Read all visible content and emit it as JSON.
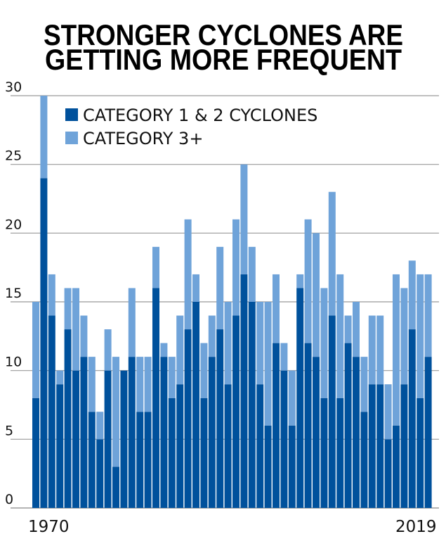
{
  "chart_data": {
    "type": "bar",
    "stacked": true,
    "title": "STRONGER CYCLONES ARE GETTING MORE FREQUENT",
    "title_lines": [
      "STRONGER CYCLONES ARE",
      "GETTING MORE FREQUENT"
    ],
    "xlabel": "",
    "ylabel": "",
    "ylim": [
      0,
      30
    ],
    "yticks": [
      0,
      5,
      10,
      15,
      20,
      25,
      30
    ],
    "x_start": 1970,
    "x_end": 2019,
    "x_tick_labels": [
      "1970",
      "2019"
    ],
    "grid": true,
    "legend_position": "top-left",
    "series": [
      {
        "name": "CATEGORY 1 & 2 CYCLONES",
        "color": "#00519c",
        "values": [
          8,
          24,
          14,
          9,
          13,
          10,
          11,
          7,
          5,
          10,
          3,
          10,
          11,
          7,
          7,
          16,
          11,
          8,
          9,
          13,
          15,
          8,
          11,
          13,
          9,
          14,
          17,
          15,
          9,
          6,
          12,
          10,
          6,
          16,
          12,
          11,
          8,
          14,
          8,
          12,
          11,
          7,
          9,
          9,
          5,
          6,
          9,
          13,
          8,
          11
        ]
      },
      {
        "name": "CATEGORY 3+",
        "color": "#6fa3d9",
        "values": [
          7,
          6,
          3,
          1,
          3,
          6,
          3,
          4,
          2,
          3,
          8,
          0,
          5,
          4,
          4,
          3,
          1,
          3,
          5,
          8,
          2,
          4,
          3,
          6,
          6,
          7,
          8,
          4,
          6,
          9,
          5,
          2,
          4,
          1,
          9,
          9,
          8,
          9,
          9,
          2,
          4,
          4,
          5,
          5,
          4,
          11,
          7,
          5,
          9,
          6
        ]
      }
    ]
  }
}
